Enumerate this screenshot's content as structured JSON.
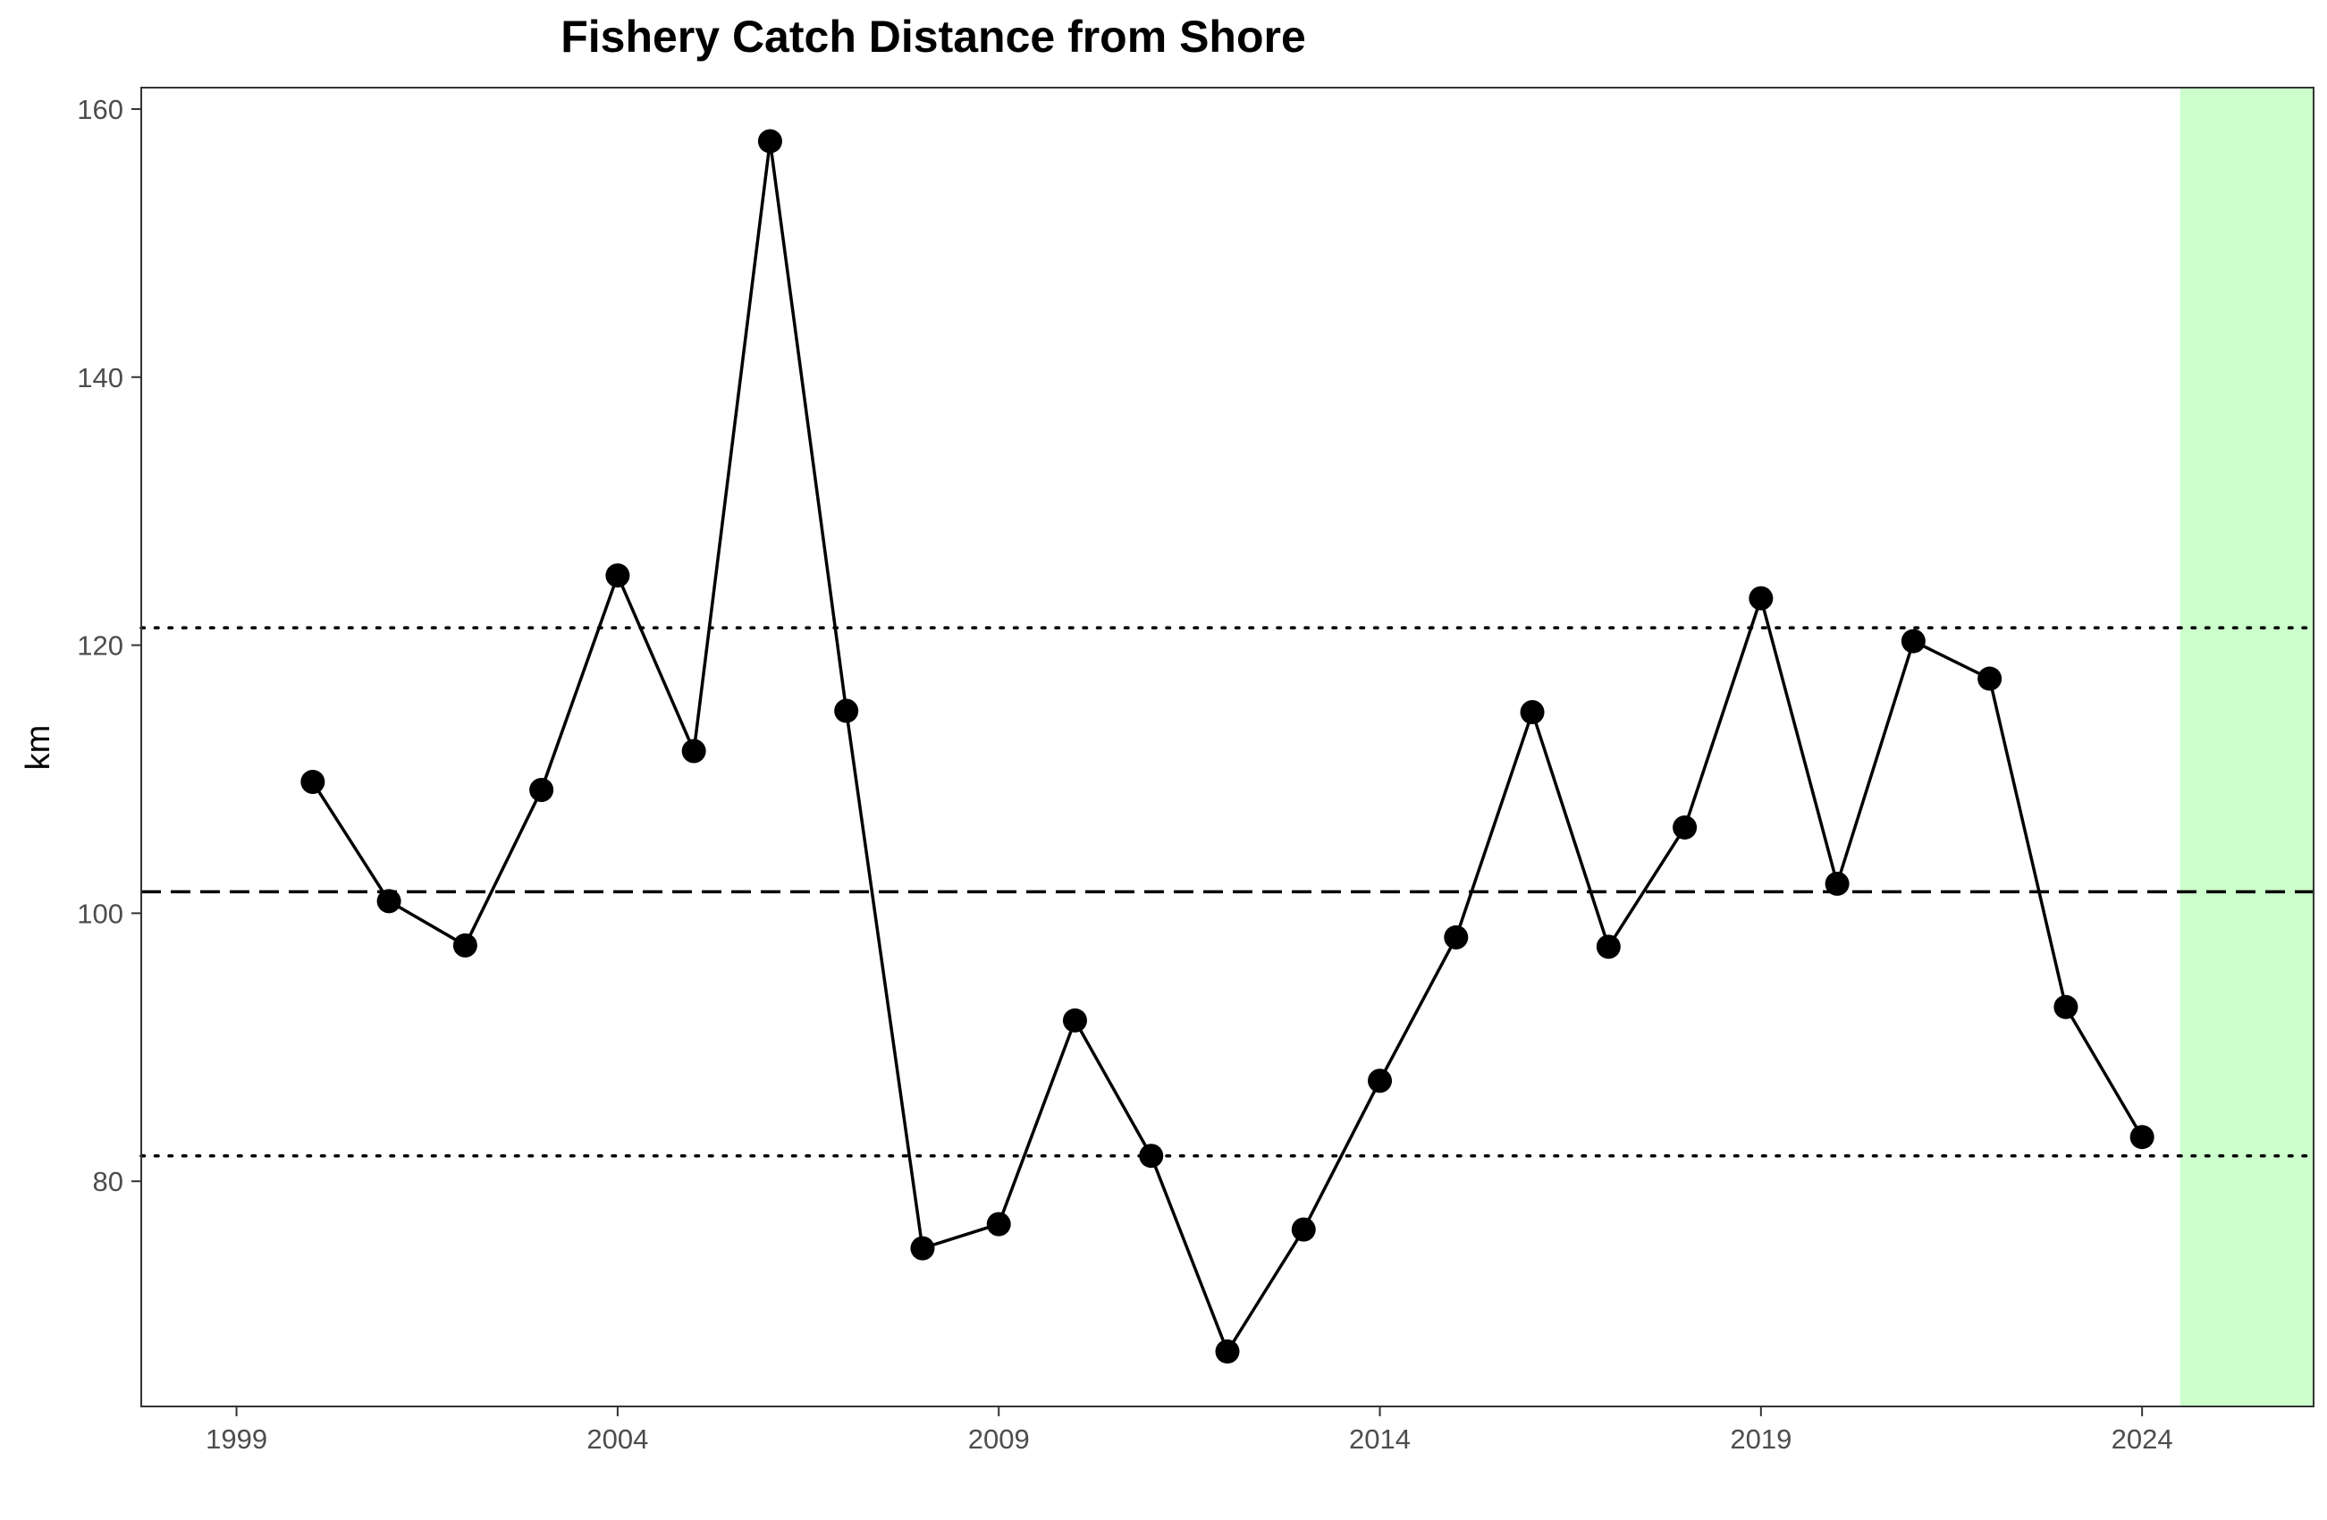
{
  "chart_data": {
    "type": "line",
    "title": "Fishery Catch Distance from Shore",
    "xlabel": "",
    "ylabel": "km",
    "x": [
      2000,
      2001,
      2002,
      2003,
      2004,
      2005,
      2006,
      2007,
      2008,
      2009,
      2010,
      2011,
      2012,
      2013,
      2014,
      2015,
      2016,
      2017,
      2018,
      2019,
      2020,
      2021,
      2022,
      2023,
      2024
    ],
    "series": [
      {
        "values": [
          109.8,
          100.9,
          97.6,
          109.2,
          125.2,
          112.1,
          157.6,
          115.1,
          75.0,
          76.8,
          92.0,
          81.9,
          67.3,
          76.4,
          87.5,
          98.2,
          115.0,
          97.5,
          106.4,
          123.5,
          102.2,
          120.3,
          117.5,
          93.0,
          83.3
        ]
      }
    ],
    "xticks": [
      "1999",
      "2004",
      "2009",
      "2014",
      "2019",
      "2024"
    ],
    "yticks": [
      "80",
      "100",
      "120",
      "140",
      "160"
    ],
    "xlim": [
      1997.75,
      2026.25
    ],
    "ylim": [
      63.2,
      161.6
    ],
    "reference_lines": [
      {
        "kind": "mean",
        "style": "dashed",
        "y": 101.6
      },
      {
        "kind": "upper-sd",
        "style": "dotted",
        "y": 121.3
      },
      {
        "kind": "lower-sd",
        "style": "dotted",
        "y": 81.9
      }
    ],
    "highlight_region": {
      "x_from": 2024.5,
      "x_to": 2026.25,
      "color": "#ccffcc"
    },
    "grid": false,
    "legend": "none",
    "colors": {
      "line": "#000000",
      "points": "#000000",
      "highlight": "#ccffcc"
    }
  }
}
